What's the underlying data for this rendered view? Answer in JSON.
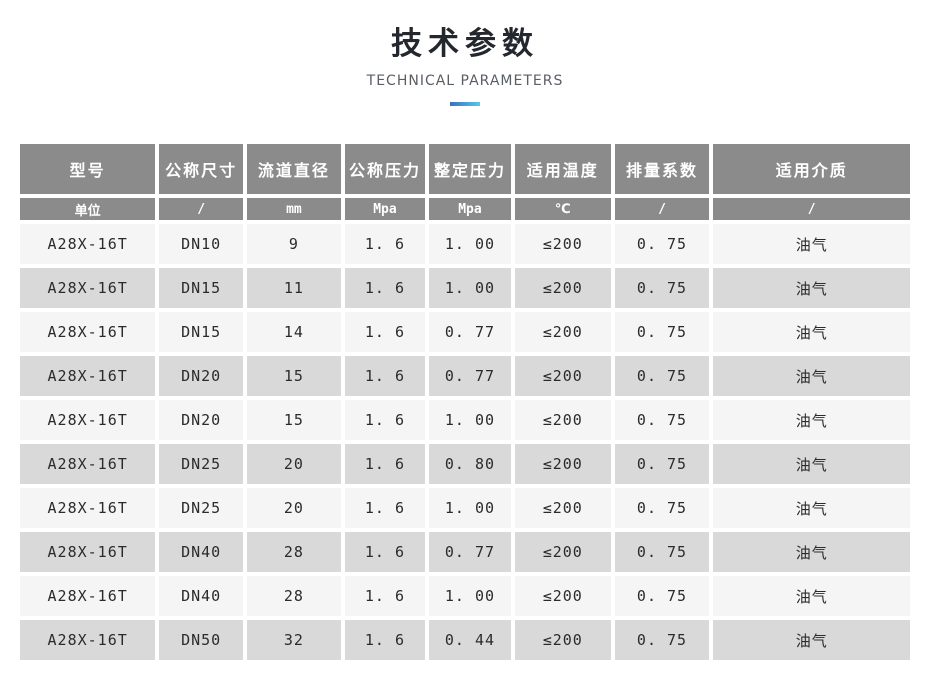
{
  "header": {
    "title": "技术参数",
    "subtitle": "TECHNICAL PARAMETERS"
  },
  "colors": {
    "title": "#23272e",
    "subtitle": "#5a5f66",
    "accent_gradient_start": "#3a6fc4",
    "accent_gradient_end": "#55c8e8",
    "table_header_bg": "#8b8b8b",
    "table_header_text": "#ffffff",
    "row_light_bg": "#f5f5f5",
    "row_dark_bg": "#d9d9d9",
    "cell_text": "#2b2b2b"
  },
  "table": {
    "columns": [
      "型号",
      "公称尺寸",
      "流道直径",
      "公称压力",
      "整定压力",
      "适用温度",
      "排量系数",
      "适用介质"
    ],
    "units_row": [
      "单位",
      "/",
      "mm",
      "Mpa",
      "Mpa",
      "℃",
      "/",
      "/"
    ],
    "rows": [
      [
        "A28X-16T",
        "DN10",
        "9",
        "1. 6",
        "1. 00",
        "≤200",
        "0. 75",
        "油气"
      ],
      [
        "A28X-16T",
        "DN15",
        "11",
        "1. 6",
        "1. 00",
        "≤200",
        "0. 75",
        "油气"
      ],
      [
        "A28X-16T",
        "DN15",
        "14",
        "1. 6",
        "0. 77",
        "≤200",
        "0. 75",
        "油气"
      ],
      [
        "A28X-16T",
        "DN20",
        "15",
        "1. 6",
        "0. 77",
        "≤200",
        "0. 75",
        "油气"
      ],
      [
        "A28X-16T",
        "DN20",
        "15",
        "1. 6",
        "1. 00",
        "≤200",
        "0. 75",
        "油气"
      ],
      [
        "A28X-16T",
        "DN25",
        "20",
        "1. 6",
        "0. 80",
        "≤200",
        "0. 75",
        "油气"
      ],
      [
        "A28X-16T",
        "DN25",
        "20",
        "1. 6",
        "1. 00",
        "≤200",
        "0. 75",
        "油气"
      ],
      [
        "A28X-16T",
        "DN40",
        "28",
        "1. 6",
        "0. 77",
        "≤200",
        "0. 75",
        "油气"
      ],
      [
        "A28X-16T",
        "DN40",
        "28",
        "1. 6",
        "1. 00",
        "≤200",
        "0. 75",
        "油气"
      ],
      [
        "A28X-16T",
        "DN50",
        "32",
        "1. 6",
        "0. 44",
        "≤200",
        "0. 75",
        "油气"
      ]
    ]
  }
}
